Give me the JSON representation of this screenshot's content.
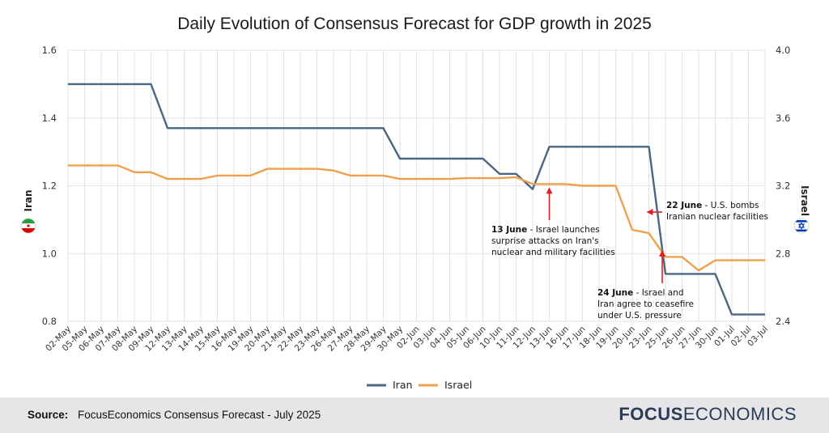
{
  "chart_data": {
    "type": "line",
    "title": "Daily Evolution of Consensus Forecast for GDP growth in 2025",
    "categories": [
      "02-May",
      "05-May",
      "06-May",
      "07-May",
      "08-May",
      "09-May",
      "12-May",
      "13-May",
      "14-May",
      "15-May",
      "16-May",
      "19-May",
      "20-May",
      "21-May",
      "22-May",
      "23-May",
      "26-May",
      "27-May",
      "28-May",
      "29-May",
      "30-May",
      "02-Jun",
      "03-Jun",
      "04-Jun",
      "05-Jun",
      "06-Jun",
      "10-Jun",
      "11-Jun",
      "12-Jun",
      "13-Jun",
      "16-Jun",
      "17-Jun",
      "18-Jun",
      "19-Jun",
      "20-Jun",
      "23-Jun",
      "25-Jun",
      "26-Jun",
      "27-Jun",
      "30-Jun",
      "01-Jul",
      "02-Jul",
      "03-Jul"
    ],
    "y_left": {
      "label": "Iran",
      "range": [
        0.8,
        1.6
      ],
      "ticks": [
        "0.8",
        "1.0",
        "1.2",
        "1.4",
        "1.6"
      ]
    },
    "y_right": {
      "label": "Israel",
      "range": [
        2.4,
        4.0
      ],
      "ticks": [
        "2.4",
        "2.8",
        "3.2",
        "3.6",
        "4.0"
      ]
    },
    "series": [
      {
        "name": "Iran",
        "axis": "left",
        "color": "#4a6685",
        "values": [
          1.5,
          1.5,
          1.5,
          1.5,
          1.5,
          1.5,
          1.37,
          1.37,
          1.37,
          1.37,
          1.37,
          1.37,
          1.37,
          1.37,
          1.37,
          1.37,
          1.37,
          1.37,
          1.37,
          1.37,
          1.28,
          1.28,
          1.28,
          1.28,
          1.28,
          1.28,
          1.235,
          1.235,
          1.19,
          1.315,
          1.315,
          1.315,
          1.315,
          1.315,
          1.315,
          1.315,
          0.94,
          0.94,
          0.94,
          0.94,
          0.82,
          0.82,
          0.82
        ]
      },
      {
        "name": "Israel",
        "axis": "right",
        "color": "#f0a04b",
        "values": [
          3.32,
          3.32,
          3.32,
          3.32,
          3.28,
          3.28,
          3.24,
          3.24,
          3.24,
          3.26,
          3.26,
          3.26,
          3.3,
          3.3,
          3.3,
          3.3,
          3.29,
          3.26,
          3.26,
          3.26,
          3.24,
          3.24,
          3.24,
          3.24,
          3.245,
          3.245,
          3.245,
          3.25,
          3.21,
          3.21,
          3.21,
          3.2,
          3.2,
          3.2,
          2.94,
          2.92,
          2.78,
          2.78,
          2.7,
          2.76,
          2.76,
          2.76,
          2.76
        ]
      }
    ],
    "annotations": [
      {
        "date_index": 29,
        "series": "Israel",
        "bold": "13 June",
        "lines": [
          " - Israel launches",
          "surprise attacks on Iran's",
          "nuclear and military facilities"
        ]
      },
      {
        "date_index": 35,
        "series": "Iran",
        "bold": "22 June",
        "lines": [
          " - U.S. bombs",
          "Iranian nuclear facilities"
        ]
      },
      {
        "date_index": 36,
        "series": "Israel",
        "bold": "24 June",
        "lines": [
          " - Israel and",
          "Iran agree to ceasefire",
          "under U.S. pressure"
        ]
      }
    ]
  },
  "legend": {
    "iran_label": "Iran",
    "israel_label": "Israel"
  },
  "colors": {
    "iran": "#4a6685",
    "israel": "#f0a04b",
    "arrow": "#e02020",
    "grid": "#e3e3e3"
  },
  "footer": {
    "source_label": "Source:",
    "source_text": "FocusEconomics Consensus Forecast - July 2025",
    "brand_bold": "FOCUS",
    "brand_regular": "ECONOMICS"
  }
}
